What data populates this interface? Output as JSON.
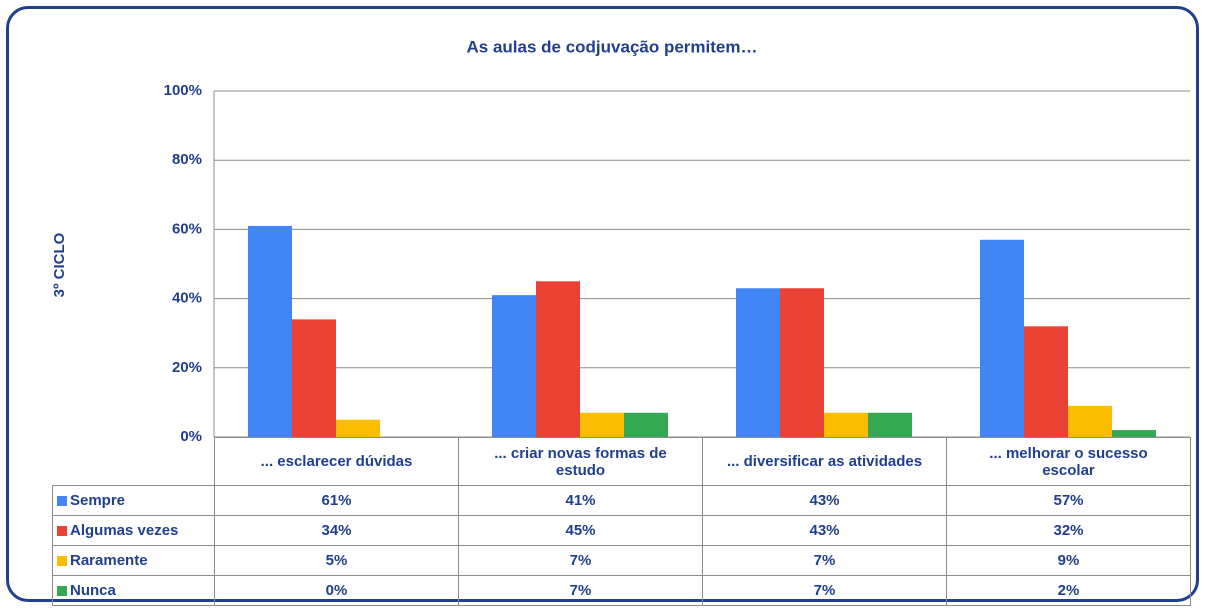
{
  "chart_data": {
    "type": "bar",
    "title": "As aulas de codjuvação permitem…",
    "y_label": "3º CICLO",
    "categories": [
      "... esclarecer dúvidas",
      "... criar novas formas de estudo",
      "... diversificar as atividades",
      "... melhorar o sucesso escolar"
    ],
    "series": [
      {
        "name": "Sempre",
        "color": "#4285f4",
        "values": [
          61,
          41,
          43,
          57
        ],
        "value_labels": [
          "61%",
          "41%",
          "43%",
          "57%"
        ]
      },
      {
        "name": "Algumas vezes",
        "color": "#ea4335",
        "values": [
          34,
          45,
          43,
          32
        ],
        "value_labels": [
          "34%",
          "45%",
          "43%",
          "32%"
        ]
      },
      {
        "name": "Raramente",
        "color": "#fbbc04",
        "values": [
          5,
          7,
          7,
          9
        ],
        "value_labels": [
          "5%",
          "7%",
          "7%",
          "9%"
        ]
      },
      {
        "name": "Nunca",
        "color": "#34a853",
        "values": [
          0,
          7,
          7,
          2
        ],
        "value_labels": [
          "0%",
          "7%",
          "7%",
          "2%"
        ]
      }
    ],
    "ylim": [
      0,
      100
    ],
    "yticks": [
      {
        "value": 0,
        "label": "0%"
      },
      {
        "value": 20,
        "label": "20%"
      },
      {
        "value": 40,
        "label": "40%"
      },
      {
        "value": 60,
        "label": "60%"
      },
      {
        "value": 80,
        "label": "80%"
      },
      {
        "value": 100,
        "label": "100%"
      }
    ],
    "grid": true
  }
}
